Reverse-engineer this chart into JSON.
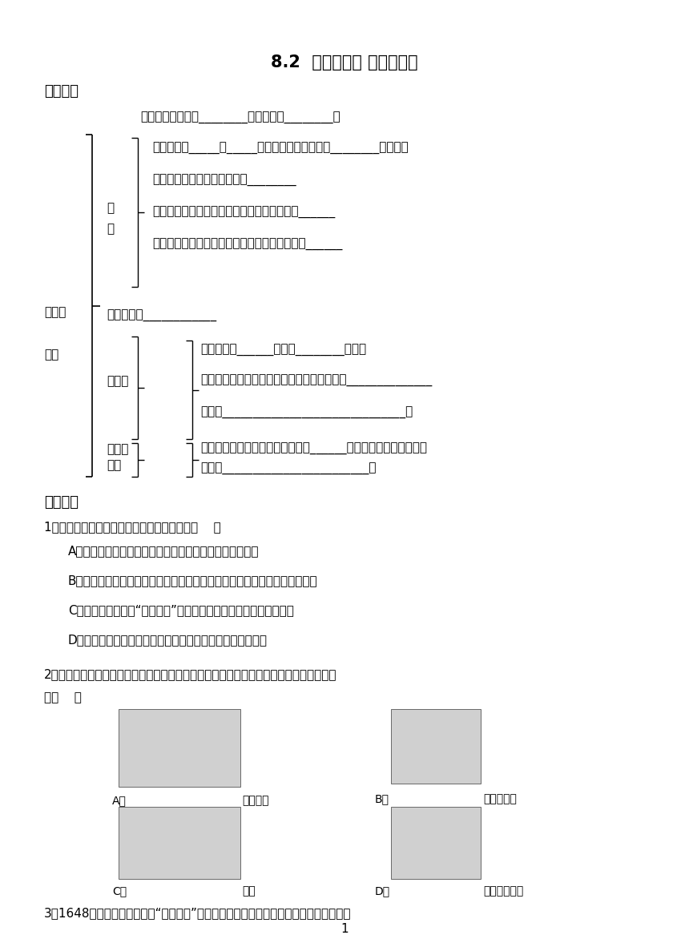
{
  "title": "8.2  科学探究： 液体的压强",
  "bg_color": "#ffffff",
  "text_color": "#1a1a1a",
  "section1_title": "知识梳理",
  "section2_title": "基础知识",
  "origin_line": "产生原因：液体受________且液体具有________性",
  "te_items": [
    "液体对容器_____和_____都有压强。液体内部向________都有压强",
    "液体内部的压强随深度增加而________",
    "同种液体在同一深度，液体向各个方向的压强______",
    "不同液体在同一深度，液体密度越大，液体压强______"
  ],
  "calc_formula": "计算公式：____________",
  "lt_items": [
    "定义：上端______，下部________的容器",
    "特点：静止在连通器的同一种液体，液面总是______________",
    "应用：______________________________等"
  ],
  "pas_items": [
    "内容：加在密闭液体上的压强能够______的被液体向各个方向传递",
    "应用：________________________等"
  ],
  "q1": "1．下列关于液体压强的说法中，不正确的是（    ）",
  "q1_opts": [
    "A．液体压强产生的原因是因为液体受到重力且具有流动性",
    "B．液体内部向各个方向都有压强，且同种液体同一深度，各方向的压强相等",
    "C．拦河大坝修建为“上窄下宽”，是因为水越深的位置液体压强越小",
    "D．连通器内装有同种液体，且液体不流动时，液面是相平的"
  ],
  "q2": "2．连通器在日常生活、生产中有着广泛的应用。以下事例中不是利用了连通器原理工作的",
  "q2b": "是（    ）",
  "img_A_label": "A．",
  "img_A_cap": "过路涵洞",
  "img_B_label": "B．",
  "img_B_cap": "液体压强计",
  "img_C_label": "C．",
  "img_C_cap": "船闸",
  "img_D_label": "D．",
  "img_D_cap": "洗手盆下水管",
  "q3": "3．1648年帕斯卡做了著名的“裂桶实验”，如图所示。他在一个密闭的、装满水的木桶的",
  "page": "1",
  "te_label_1": "特",
  "te_label_2": "点",
  "liqde_label": "液体的",
  "yasqiang_label": "压强",
  "lt_label": "连通器",
  "pas_label_1": "帕斯卡",
  "pas_label_2": "定律"
}
